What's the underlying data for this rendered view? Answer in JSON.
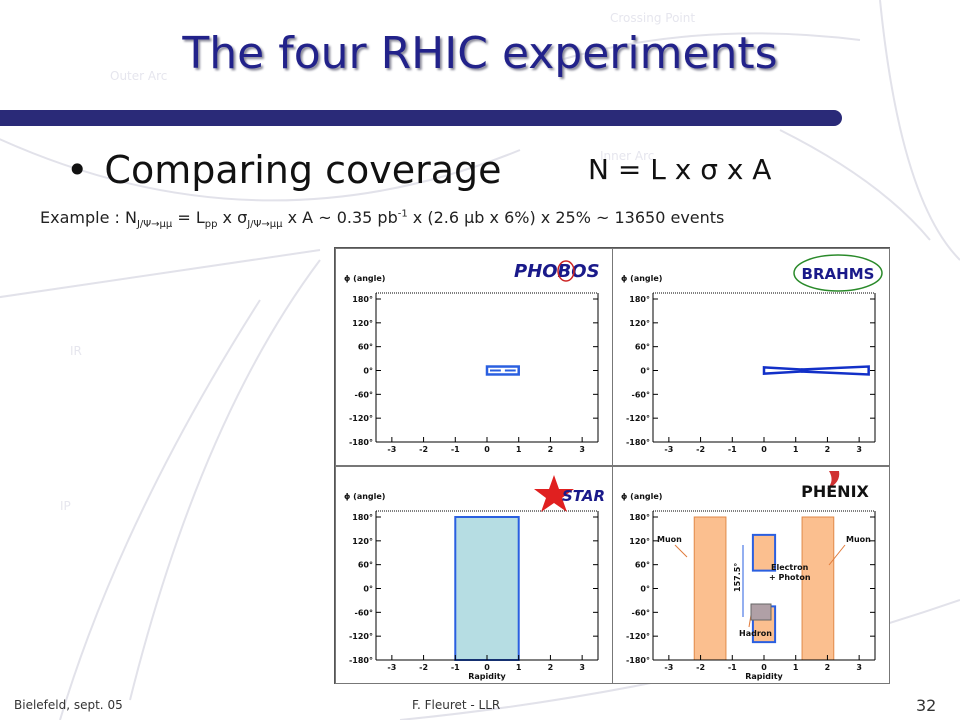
{
  "slide": {
    "title": "The four RHIC experiments",
    "bullet": "Comparing coverage",
    "formula": {
      "lhs": "N = L x ",
      "sigma": "σ",
      "rhs": " x A"
    },
    "example": {
      "prefix": "Example : N",
      "sub1": "J/Ψ→μμ",
      "mid1": " = L",
      "sub2": "pp",
      "mid2": " x σ",
      "sub3": "J/Ψ→μμ",
      "mid3": " x A ~ 0.35 pb",
      "sup1": "-1",
      "rest": " x (2.6 μb x 6%) x 25% ~ 13650 events"
    },
    "footer_left": "Bielefeld, sept. 05",
    "footer_center": "F. Fleuret - LLR",
    "page_number": "32"
  },
  "background_map": {
    "labels": [
      "Crossing Point",
      "Outer Arc",
      "Inner Arc",
      "IR",
      "IP"
    ]
  },
  "chart_data": [
    {
      "type": "area",
      "experiment": "PHOBOS",
      "ylabel": "ϕ (angle)",
      "xlabel": "",
      "xticks": [
        "-3",
        "-2",
        "-1",
        "0",
        "1",
        "2",
        "3"
      ],
      "yticks": [
        "180°",
        "120°",
        "60°",
        "0°",
        "-60°",
        "-120°",
        "-180°"
      ],
      "xlim": [
        -3.5,
        3.5
      ],
      "ylim": [
        -180,
        180
      ],
      "regions": [
        {
          "x": [
            0.0,
            1.0
          ],
          "y": [
            -10,
            10
          ],
          "style": "outline"
        }
      ]
    },
    {
      "type": "area",
      "experiment": "BRAHMS",
      "ylabel": "ϕ (angle)",
      "xlabel": "",
      "xticks": [
        "-3",
        "-2",
        "-1",
        "0",
        "1",
        "2",
        "3"
      ],
      "yticks": [
        "180°",
        "120°",
        "60°",
        "0°",
        "-60°",
        "-120°",
        "-180°"
      ],
      "xlim": [
        -3.5,
        3.5
      ],
      "ylim": [
        -180,
        180
      ],
      "regions": [
        {
          "x": [
            0.0,
            1.2
          ],
          "y": [
            -8,
            8
          ],
          "style": "wedge-left"
        },
        {
          "x": [
            1.2,
            3.3
          ],
          "y": [
            -10,
            10
          ],
          "style": "wedge-right"
        }
      ]
    },
    {
      "type": "area",
      "experiment": "STAR",
      "ylabel": "ϕ (angle)",
      "xlabel": "Rapidity",
      "xticks": [
        "-3",
        "-2",
        "-1",
        "0",
        "1",
        "2",
        "3"
      ],
      "yticks": [
        "180°",
        "120°",
        "60°",
        "0°",
        "-60°",
        "-120°",
        "-180°"
      ],
      "xlim": [
        -3.5,
        3.5
      ],
      "ylim": [
        -180,
        180
      ],
      "regions": [
        {
          "x": [
            -1.0,
            1.0
          ],
          "y": [
            -180,
            180
          ],
          "style": "fill-blue"
        }
      ]
    },
    {
      "type": "area",
      "experiment": "PHENIX",
      "ylabel": "ϕ (angle)",
      "xlabel": "Rapidity",
      "xticks": [
        "-3",
        "-2",
        "-1",
        "0",
        "1",
        "2",
        "3"
      ],
      "yticks": [
        "180°",
        "120°",
        "60°",
        "0°",
        "-60°",
        "-120°",
        "-180°"
      ],
      "xlim": [
        -3.5,
        3.5
      ],
      "ylim": [
        -180,
        180
      ],
      "regions": [
        {
          "x": [
            -2.2,
            -1.2
          ],
          "y": [
            -180,
            180
          ],
          "style": "fill-orange"
        },
        {
          "x": [
            1.2,
            2.2
          ],
          "y": [
            -180,
            180
          ],
          "style": "fill-orange"
        },
        {
          "x": [
            -0.35,
            0.35
          ],
          "y": [
            45,
            135
          ],
          "style": "fill-orange-outline"
        },
        {
          "x": [
            -0.35,
            0.35
          ],
          "y": [
            -135,
            -45
          ],
          "style": "fill-orange-outline"
        }
      ],
      "annotations": [
        "Muon",
        "Muon",
        "Electron",
        "+ Photon",
        "Hadron",
        "157.5°"
      ]
    }
  ]
}
